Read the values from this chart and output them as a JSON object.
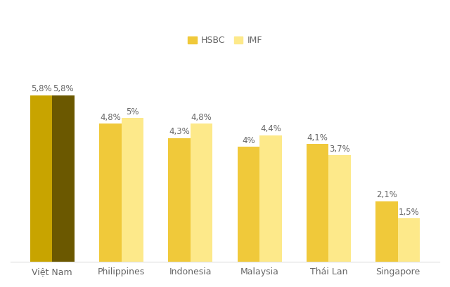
{
  "categories": [
    "Việt Nam",
    "Philippines",
    "Indonesia",
    "Malaysia",
    "Thái Lan",
    "Singapore"
  ],
  "hsbc_values": [
    5.8,
    4.8,
    4.3,
    4.0,
    4.1,
    2.1
  ],
  "imf_values": [
    5.8,
    5.0,
    4.8,
    4.4,
    3.7,
    1.5
  ],
  "hsbc_labels": [
    "5,8%",
    "4,8%",
    "4,3%",
    "4%",
    "4,1%",
    "2,1%"
  ],
  "imf_labels": [
    "5,8%",
    "5%",
    "4,8%",
    "4,4%",
    "3,7%",
    "1,5%"
  ],
  "vietnam_hsbc_color": "#C8A400",
  "vietnam_imf_color": "#6B5800",
  "other_hsbc_color": "#F0C93A",
  "other_imf_color": "#FDE98A",
  "legend_hsbc_color": "#F0C93A",
  "legend_imf_color": "#FDE98A",
  "bar_width": 0.32,
  "ylim": [
    0,
    7.2
  ],
  "background_color": "#FFFFFF",
  "label_fontsize": 8.5,
  "tick_fontsize": 9,
  "legend_fontsize": 9,
  "label_color": "#666666"
}
